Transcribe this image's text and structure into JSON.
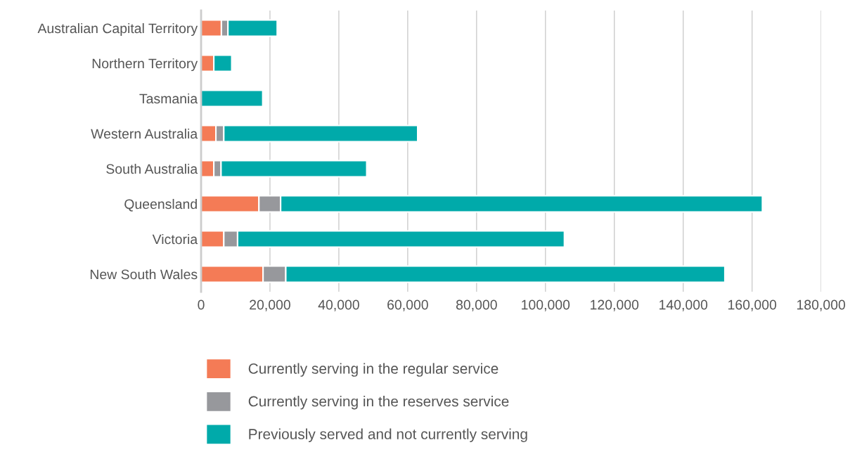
{
  "chart_data": {
    "type": "bar",
    "orientation": "horizontal",
    "stacked": true,
    "categories": [
      "Australian Capital Territory",
      "Northern Territory",
      "Tasmania",
      "Western Australia",
      "South Australia",
      "Queensland",
      "Victoria",
      "New South Wales"
    ],
    "series": [
      {
        "name": "Currently serving in the regular service",
        "color": "#f47b56",
        "values": [
          5900,
          3700,
          null,
          4300,
          3700,
          16800,
          6600,
          18000
        ]
      },
      {
        "name": "Currently serving in the reserves service",
        "color": "#97989c",
        "values": [
          1900,
          null,
          null,
          2300,
          2100,
          6300,
          4000,
          6600
        ]
      },
      {
        "name": "Previously served and not currently serving",
        "color": "#00aaaa",
        "values": [
          14300,
          5200,
          17900,
          56300,
          42300,
          139900,
          94900,
          127500
        ]
      }
    ],
    "xlim": [
      0,
      180000
    ],
    "xticks": [
      0,
      {
        "value": 20000,
        "label": "20,000"
      },
      {
        "value": 40000,
        "label": "40,000"
      },
      {
        "value": 60000,
        "label": "60,000"
      },
      {
        "value": 80000,
        "label": "80,000"
      },
      {
        "value": 100000,
        "label": "100,000"
      },
      {
        "value": 120000,
        "label": "120,000"
      },
      {
        "value": 140000,
        "label": "140,000"
      },
      {
        "value": 160000,
        "label": "160,000"
      },
      {
        "value": 180000,
        "label": "180,000"
      }
    ],
    "grid": "x",
    "legend": "bottom"
  }
}
